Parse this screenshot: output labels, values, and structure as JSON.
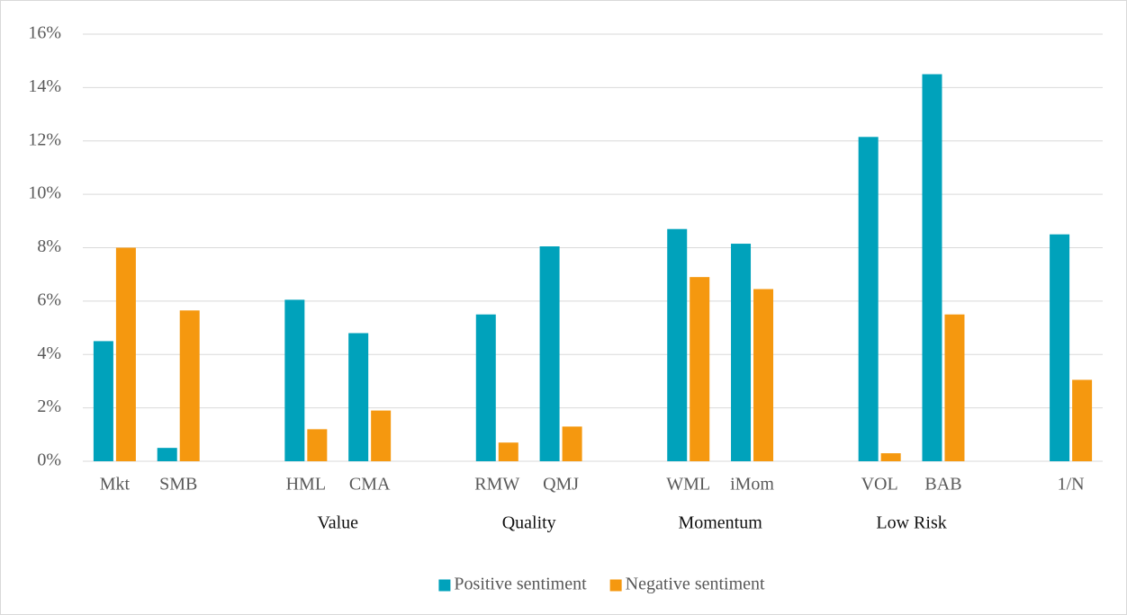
{
  "chart_data": {
    "type": "bar",
    "categories": [
      "Mkt",
      "SMB",
      null,
      "HML",
      "CMA",
      null,
      "RMW",
      "QMJ",
      null,
      "WML",
      "iMom",
      null,
      "VOL",
      "BAB",
      null,
      "1/N"
    ],
    "groups": [
      {
        "label": "Value",
        "categories": [
          "HML",
          "CMA"
        ]
      },
      {
        "label": "Quality",
        "categories": [
          "RMW",
          "QMJ"
        ]
      },
      {
        "label": "Momentum",
        "categories": [
          "WML",
          "iMom"
        ]
      },
      {
        "label": "Low Risk",
        "categories": [
          "VOL",
          "BAB"
        ]
      }
    ],
    "series": [
      {
        "name": "Positive sentiment",
        "color": "#00a2bb",
        "values": [
          4.5,
          0.5,
          null,
          6.05,
          4.8,
          null,
          5.5,
          8.05,
          null,
          8.7,
          8.15,
          null,
          12.15,
          14.5,
          null,
          8.5
        ]
      },
      {
        "name": "Negative sentiment",
        "color": "#f5980f",
        "values": [
          8.0,
          5.65,
          null,
          1.2,
          1.9,
          null,
          0.7,
          1.3,
          null,
          6.9,
          6.45,
          null,
          0.3,
          5.5,
          null,
          3.05
        ]
      }
    ],
    "ylim": [
      0,
      16
    ],
    "yticks": [
      {
        "value": 0,
        "label": "0%"
      },
      {
        "value": 2,
        "label": "2%"
      },
      {
        "value": 4,
        "label": "4%"
      },
      {
        "value": 6,
        "label": "6%"
      },
      {
        "value": 8,
        "label": "8%"
      },
      {
        "value": 10,
        "label": "10%"
      },
      {
        "value": 12,
        "label": "12%"
      },
      {
        "value": 14,
        "label": "14%"
      },
      {
        "value": 16,
        "label": "16%"
      }
    ],
    "grid": true,
    "legend": "bottom"
  }
}
